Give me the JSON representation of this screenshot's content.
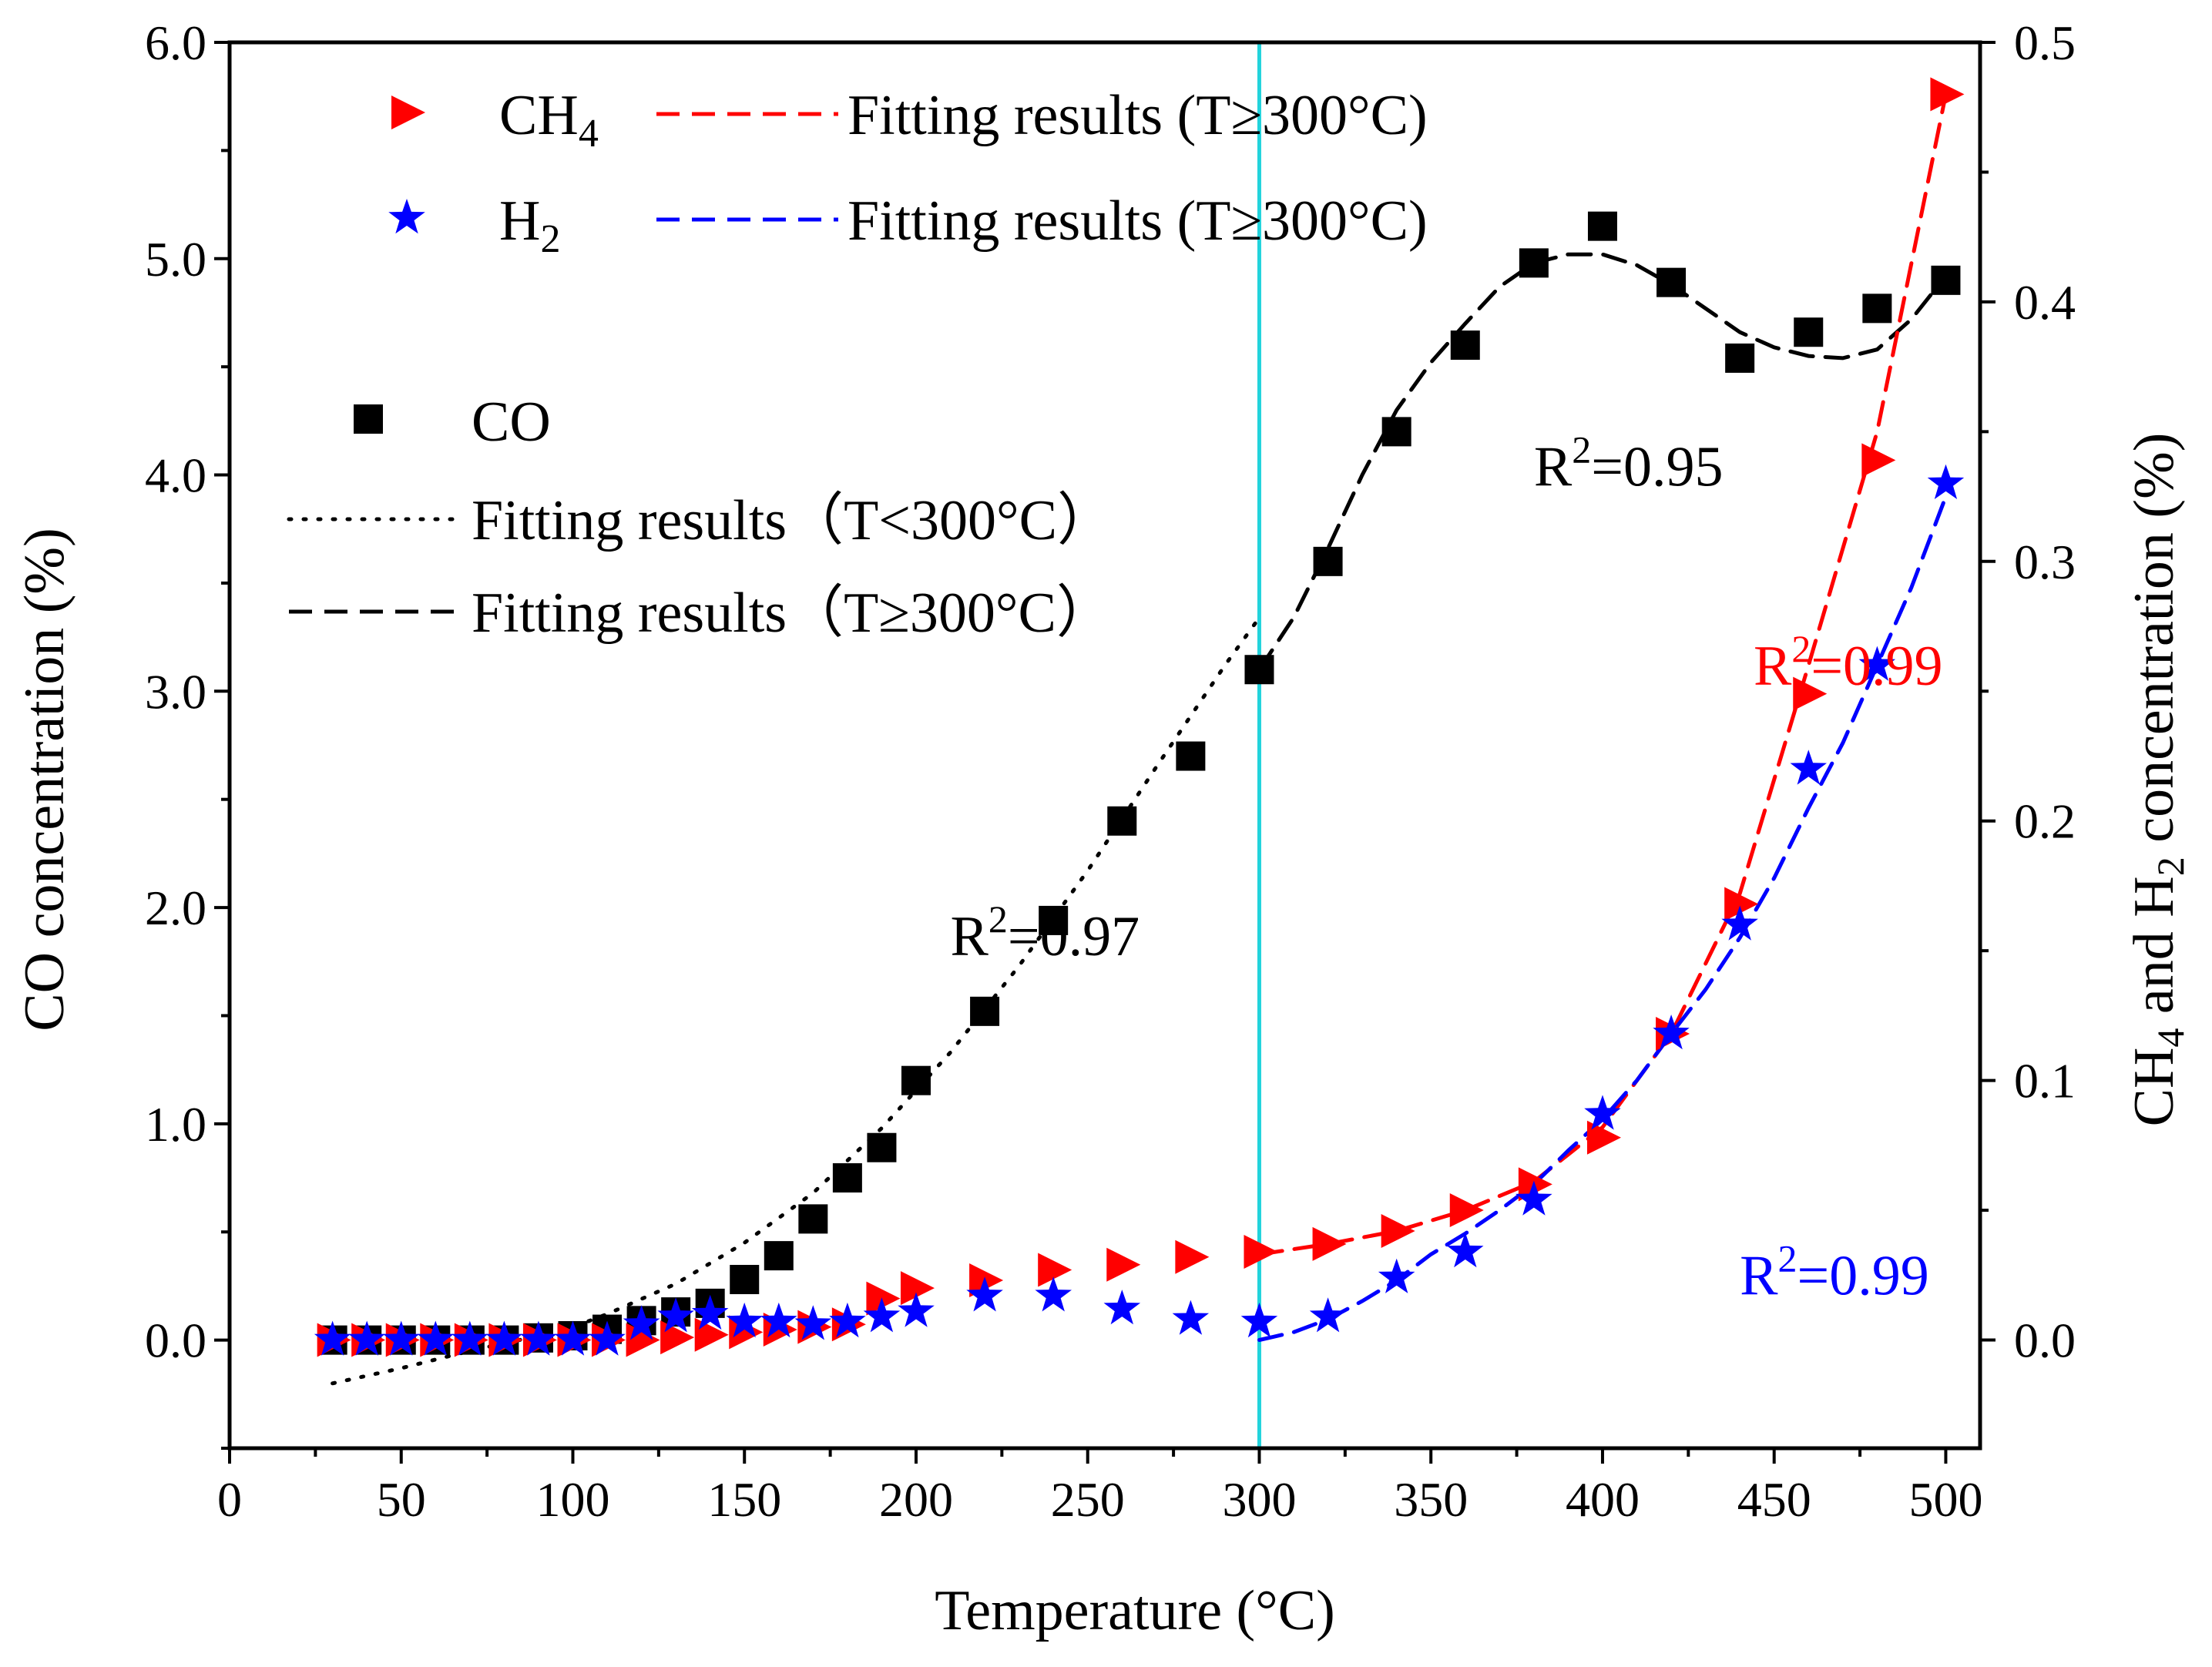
{
  "chart_data": {
    "type": "scatter",
    "title": "",
    "xlabel": "Temperature (°C)",
    "ylabel_left": "CO concentration (%)",
    "ylabel_right_parts": [
      "CH",
      "4",
      " and H",
      "2",
      " concentration (%)"
    ],
    "xlim": [
      0,
      510
    ],
    "ylim_left": [
      -0.5,
      6.0
    ],
    "ylim_right": [
      -0.0417,
      0.5
    ],
    "xticks": [
      0,
      50,
      100,
      150,
      200,
      250,
      300,
      350,
      400,
      450,
      500
    ],
    "xtick_labels": [
      "0",
      "50",
      "100",
      "150",
      "200",
      "250",
      "300",
      "350",
      "400",
      "450",
      "500"
    ],
    "yticks_left": [
      0,
      1,
      2,
      3,
      4,
      5,
      6
    ],
    "ytick_labels_left": [
      "0.0",
      "1.0",
      "2.0",
      "3.0",
      "4.0",
      "5.0",
      "6.0"
    ],
    "yticks_right": [
      0,
      0.1,
      0.2,
      0.3,
      0.4,
      0.5
    ],
    "ytick_labels_right": [
      "0.0",
      "0.1",
      "0.2",
      "0.3",
      "0.4",
      "0.5"
    ],
    "vline_x": 300,
    "vline_color": "#22d3dc",
    "series": [
      {
        "name": "CO",
        "marker": "square",
        "color": "#000000",
        "axis": "left",
        "x": [
          30,
          40,
          50,
          60,
          70,
          80,
          90,
          100,
          110,
          120,
          130,
          140,
          150,
          160,
          170,
          180,
          190,
          200,
          220,
          240,
          260,
          280,
          300,
          320,
          340,
          360,
          380,
          400,
          420,
          440,
          460,
          480,
          500
        ],
        "y": [
          0,
          0,
          0,
          0,
          0,
          0,
          0.01,
          0.02,
          0.05,
          0.09,
          0.13,
          0.17,
          0.28,
          0.39,
          0.56,
          0.75,
          0.89,
          1.2,
          1.52,
          1.94,
          2.4,
          2.7,
          3.1,
          3.6,
          4.2,
          4.6,
          4.98,
          5.15,
          4.89,
          4.54,
          4.66,
          4.77,
          4.9
        ]
      },
      {
        "name": "CH4",
        "marker": "triangle-right",
        "color": "#ff0000",
        "axis": "right",
        "x": [
          30,
          40,
          50,
          60,
          70,
          80,
          90,
          100,
          110,
          120,
          130,
          140,
          150,
          160,
          170,
          180,
          190,
          200,
          220,
          240,
          260,
          280,
          300,
          320,
          340,
          360,
          380,
          400,
          420,
          440,
          460,
          480,
          500
        ],
        "y": [
          0,
          0,
          0,
          0,
          0,
          0,
          0,
          0,
          0,
          0,
          0.001,
          0.002,
          0.003,
          0.004,
          0.005,
          0.006,
          0.016,
          0.02,
          0.023,
          0.027,
          0.029,
          0.032,
          0.034,
          0.037,
          0.042,
          0.05,
          0.06,
          0.078,
          0.118,
          0.168,
          0.249,
          0.339,
          0.48
        ]
      },
      {
        "name": "H2",
        "marker": "star",
        "color": "#0000ff",
        "axis": "right",
        "x": [
          30,
          40,
          50,
          60,
          70,
          80,
          90,
          100,
          110,
          120,
          130,
          140,
          150,
          160,
          170,
          180,
          190,
          200,
          220,
          240,
          260,
          280,
          300,
          320,
          340,
          360,
          380,
          400,
          420,
          440,
          460,
          480,
          500
        ],
        "y": [
          0,
          0,
          0,
          0,
          0,
          0,
          0,
          0,
          0,
          0.006,
          0.009,
          0.01,
          0.007,
          0.007,
          0.006,
          0.007,
          0.009,
          0.011,
          0.017,
          0.017,
          0.012,
          0.008,
          0.007,
          0.009,
          0.024,
          0.034,
          0.054,
          0.087,
          0.118,
          0.16,
          0.22,
          0.26,
          0.33
        ]
      }
    ],
    "fits": [
      {
        "name": "CO fit T<300",
        "style": "dotted",
        "color": "#000000",
        "axis": "left",
        "x": [
          30,
          50,
          70,
          90,
          100,
          110,
          130,
          150,
          170,
          190,
          210,
          230,
          250,
          270,
          290,
          300
        ],
        "y": [
          -0.2,
          -0.13,
          -0.05,
          0.02,
          0.06,
          0.12,
          0.26,
          0.45,
          0.68,
          0.98,
          1.33,
          1.73,
          2.17,
          2.65,
          3.12,
          3.34
        ]
      },
      {
        "name": "CO fit T>=300",
        "style": "dashed",
        "color": "#000000",
        "axis": "left",
        "x": [
          300,
          310,
          320,
          330,
          340,
          350,
          360,
          370,
          380,
          390,
          400,
          410,
          420,
          430,
          440,
          450,
          460,
          470,
          480,
          490,
          500
        ],
        "y": [
          3.1,
          3.34,
          3.66,
          4.0,
          4.3,
          4.52,
          4.7,
          4.87,
          4.98,
          5.02,
          5.02,
          4.97,
          4.88,
          4.77,
          4.66,
          4.59,
          4.55,
          4.54,
          4.58,
          4.72,
          4.92
        ]
      },
      {
        "name": "CH4 fit T>=300",
        "style": "dashed",
        "color": "#ff0000",
        "axis": "right",
        "x": [
          300,
          320,
          340,
          360,
          380,
          400,
          420,
          440,
          460,
          480,
          500
        ],
        "y": [
          0.033,
          0.037,
          0.042,
          0.05,
          0.061,
          0.082,
          0.118,
          0.172,
          0.26,
          0.35,
          0.48
        ]
      },
      {
        "name": "H2 fit T>=300",
        "style": "dashed",
        "color": "#0000ff",
        "axis": "right",
        "x": [
          300,
          310,
          320,
          330,
          340,
          350,
          360,
          370,
          380,
          390,
          400,
          410,
          420,
          430,
          440,
          450,
          460,
          470,
          480,
          490,
          500
        ],
        "y": [
          0.0,
          0.003,
          0.008,
          0.015,
          0.023,
          0.033,
          0.041,
          0.05,
          0.06,
          0.073,
          0.085,
          0.1,
          0.118,
          0.135,
          0.155,
          0.178,
          0.205,
          0.23,
          0.26,
          0.29,
          0.325
        ]
      }
    ],
    "legend_top": [
      {
        "label_main": "CH",
        "label_sub": "4",
        "marker": "triangle-right",
        "color": "#ff0000",
        "fit_label": "Fitting results (T≥300°C)"
      },
      {
        "label_main": "H",
        "label_sub": "2",
        "marker": "star",
        "color": "#0000ff",
        "fit_label": "Fitting results (T≥300°C)"
      }
    ],
    "legend_co": {
      "marker_label": "CO",
      "fit_below_label": "Fitting results（T<300°C）",
      "fit_above_label": "Fitting results（T≥300°C）"
    },
    "annotations": [
      {
        "text_main": "R",
        "text_sup": "2",
        "text_rest": "=0.97",
        "color": "#000000",
        "x": 210,
        "y_left": 1.78
      },
      {
        "text_main": "R",
        "text_sup": "2",
        "text_rest": "=0.95",
        "color": "#000000",
        "x": 380,
        "y_left": 3.95
      },
      {
        "text_main": "R",
        "text_sup": "2",
        "text_rest": "=0.99",
        "color": "#ff0000",
        "x": 444,
        "y_left": 3.03
      },
      {
        "text_main": "R",
        "text_sup": "2",
        "text_rest": "=0.99",
        "color": "#0000ff",
        "x": 440,
        "y_left": 0.21
      }
    ]
  }
}
